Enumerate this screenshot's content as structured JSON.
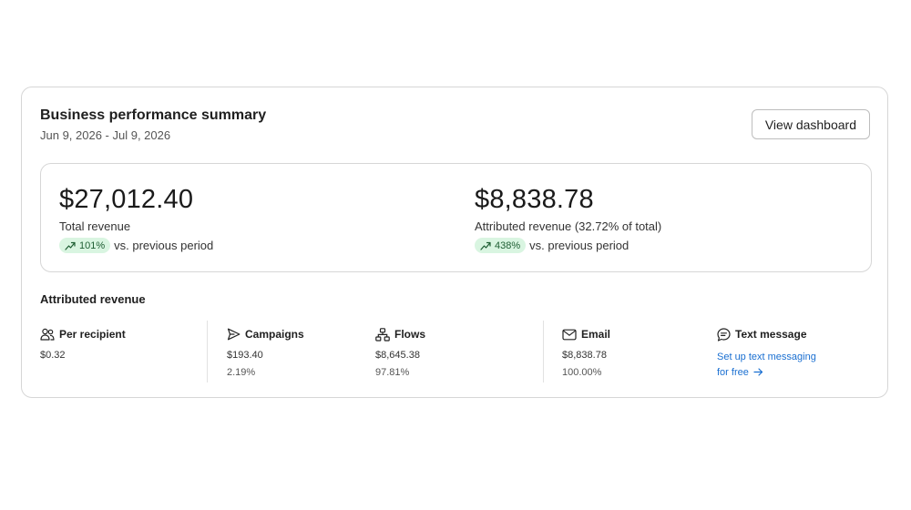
{
  "header": {
    "title": "Business performance summary",
    "date_range": "Jun 9, 2026 - Jul 9, 2026",
    "view_dashboard_label": "View dashboard"
  },
  "summary": {
    "total": {
      "value": "$27,012.40",
      "label": "Total revenue",
      "change": "101%",
      "comparison": "vs. previous period"
    },
    "attributed": {
      "value": "$8,838.78",
      "label": "Attributed revenue (32.72% of total)",
      "change": "438%",
      "comparison": "vs. previous period"
    }
  },
  "attributed_section": {
    "title": "Attributed revenue",
    "per_recipient": {
      "label": "Per recipient",
      "value": "$0.32"
    },
    "campaigns": {
      "label": "Campaigns",
      "value": "$193.40",
      "percent": "2.19%"
    },
    "flows": {
      "label": "Flows",
      "value": "$8,645.38",
      "percent": "97.81%"
    },
    "email": {
      "label": "Email",
      "value": "$8,838.78",
      "percent": "100.00%"
    },
    "text_message": {
      "label": "Text message",
      "link": "Set up text messaging for free"
    }
  },
  "colors": {
    "positive_pill_bg": "#d9f5e1",
    "positive_pill_text": "#1e5e33",
    "link": "#1a6fd1"
  },
  "icons": {
    "per_recipient": "people-icon",
    "campaigns": "send-icon",
    "flows": "flow-icon",
    "email": "envelope-icon",
    "text_message": "chat-bubble-icon",
    "trend": "trend-up-icon",
    "link_arrow": "arrow-right-icon"
  }
}
